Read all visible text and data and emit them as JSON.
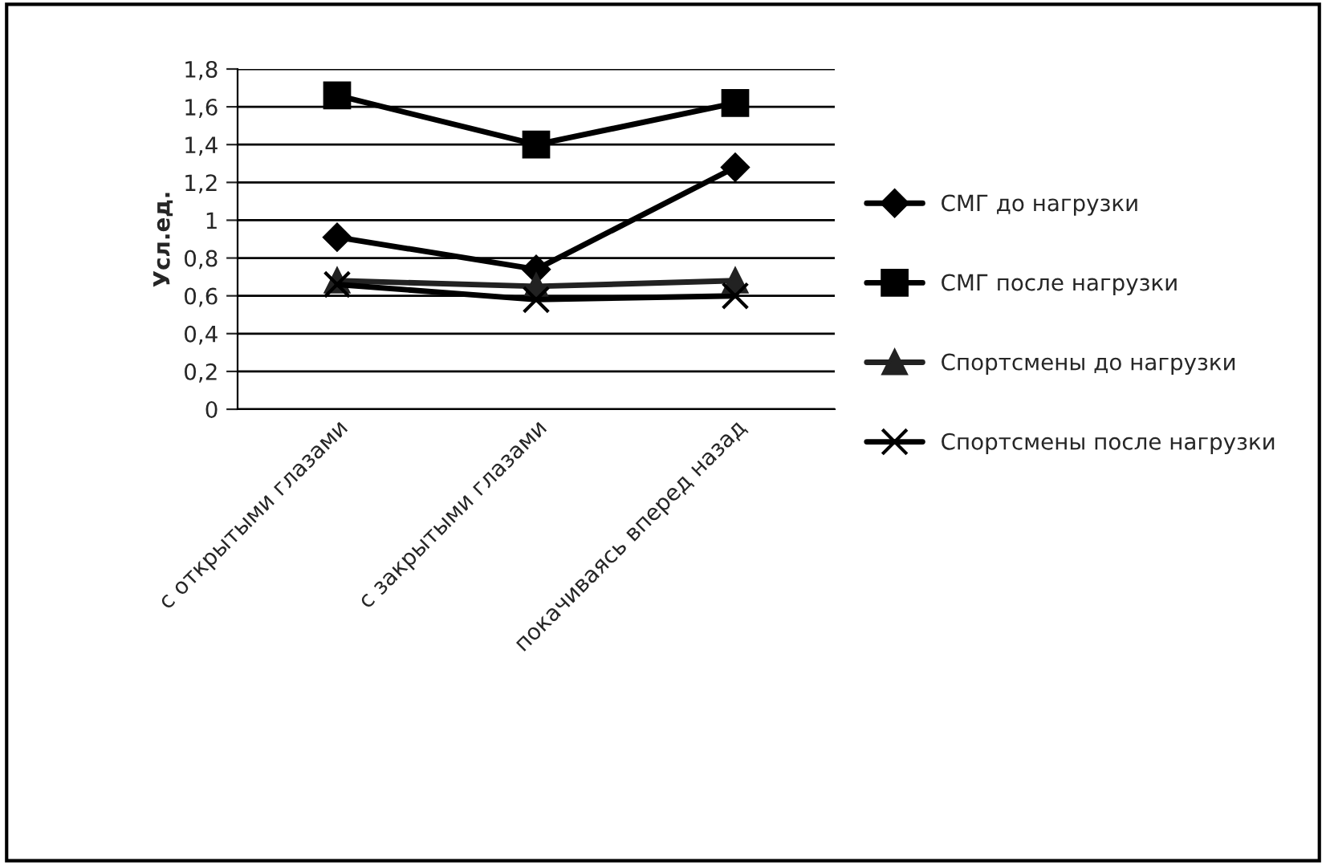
{
  "chart_data": {
    "type": "line",
    "ylabel": "Усл.ед.",
    "categories": [
      "с открытыми глазами",
      "с закрытыми глазами",
      "покачиваясь вперед назад"
    ],
    "series": [
      {
        "name": "СМГ до нагрузки",
        "color": "#000000",
        "marker": "diamond",
        "values": [
          0.91,
          0.74,
          1.28
        ]
      },
      {
        "name": "СМГ после нагрузки",
        "color": "#000000",
        "marker": "square",
        "values": [
          1.66,
          1.4,
          1.62
        ]
      },
      {
        "name": "Спортсмены до нагрузки",
        "color": "#222222",
        "marker": "triangle",
        "values": [
          0.68,
          0.65,
          0.68
        ]
      },
      {
        "name": "Спортсмены после нагрузки",
        "color": "#000000",
        "marker": "cross",
        "values": [
          0.66,
          0.58,
          0.6
        ]
      }
    ],
    "ylim": [
      0,
      1.8
    ],
    "yticks": [
      0,
      {
        "value": 0.2,
        "label": "0,2"
      },
      {
        "value": 0.4,
        "label": "0,4"
      },
      {
        "value": 0.6,
        "label": "0,6"
      },
      {
        "value": 0.8,
        "label": "0,8"
      },
      1,
      {
        "value": 1.2,
        "label": "1,2"
      },
      {
        "value": 1.4,
        "label": "1,4"
      },
      {
        "value": 1.6,
        "label": "1,6"
      },
      {
        "value": 1.8,
        "label": "1,8"
      }
    ],
    "grid": "y",
    "legend": "right",
    "line_style": "solid"
  }
}
